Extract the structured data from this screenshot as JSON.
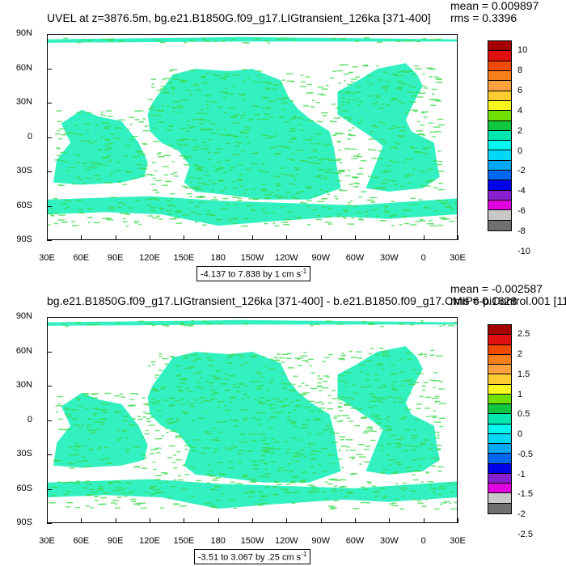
{
  "panels": [
    {
      "title": "UVEL at z=3876.5m, bg.e21.B1850G.f09_g17.LIGtransient_126ka [371-400]",
      "mean_text": "mean = 0.009897",
      "rms_text": "rms = 0.3396",
      "range_text": "-4.137 to 7.838 by 1 cm s",
      "range_sup": "-1",
      "colorbar_labels": [
        "10",
        "8",
        "6",
        "4",
        "2",
        "0",
        "-2",
        "-4",
        "-6",
        "-8",
        "-10"
      ]
    },
    {
      "title": "bg.e21.B1850G.f09_g17.LIGtransient_126ka [371-400] - b.e21.B1850.f09_g17.CMIP6-piControl.001 [11",
      "mean_text": "mean = -0.002587",
      "rms_text": "rms = 0.1628",
      "range_text": "-3.51 to 3.067 by .25 cm s",
      "range_sup": "-1",
      "colorbar_labels": [
        "2.5",
        "2",
        "1.5",
        "1",
        "0.5",
        "0",
        "-0.5",
        "-1",
        "-1.5",
        "-2",
        "-2.5"
      ]
    }
  ],
  "lat_labels": [
    "90N",
    "60N",
    "30N",
    "0",
    "30S",
    "60S",
    "90S"
  ],
  "lon_labels": [
    "30E",
    "60E",
    "90E",
    "120E",
    "150E",
    "180",
    "150W",
    "120W",
    "90W",
    "60W",
    "30W",
    "0",
    "30E"
  ],
  "colorbar_colors": [
    "#a50000",
    "#e01010",
    "#f04a00",
    "#f8801a",
    "#fca040",
    "#fccc30",
    "#f8f820",
    "#70e000",
    "#10c840",
    "#00e8b0",
    "#00f8f0",
    "#00d8f8",
    "#00a8f8",
    "#0068f0",
    "#0000e8",
    "#8820d0",
    "#e000e0",
    "#c8c8c8",
    "#707070"
  ],
  "land_color": "#ffffff",
  "ocean_base_color": "#33f0c0",
  "accent_green": "#3ad84a"
}
